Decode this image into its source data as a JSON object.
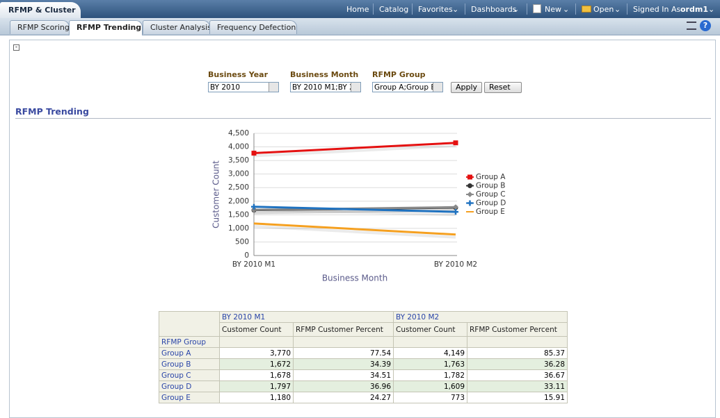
{
  "nav": {
    "app_tab": "RFMP & Cluster",
    "links": [
      "Home",
      "Catalog",
      "Favorites",
      "Dashboards",
      "New",
      "Open"
    ],
    "signed_in_label": "Signed In As",
    "user": "ordm1"
  },
  "tabs": [
    "RFMP Scoring",
    "RFMP Trending",
    "Cluster Analysis",
    "Frequency Defection"
  ],
  "prompts": [
    {
      "label": "Business Year",
      "value": "BY 2010"
    },
    {
      "label": "Business Month",
      "value": "BY 2010 M1;BY 2"
    },
    {
      "label": "RFMP Group",
      "value": "Group A;Group B"
    }
  ],
  "buttons": [
    "Apply",
    "Reset"
  ],
  "section_title": "RFMP Trending",
  "chart_data": {
    "type": "line",
    "categories": [
      "BY 2010 M1",
      "BY 2010 M2"
    ],
    "x_label": "Business Month",
    "y_label": "Customer Count",
    "ylim": [
      0,
      4500
    ],
    "yticks": [
      0,
      500,
      {
        "value": 1000,
        "label": "1,000"
      },
      {
        "value": 1500,
        "label": "1,500"
      },
      {
        "value": 2000,
        "label": "2,000"
      },
      {
        "value": 2500,
        "label": "2,500"
      },
      {
        "value": 3000,
        "label": "3,000"
      },
      {
        "value": 3500,
        "label": "3,500"
      },
      {
        "value": 4000,
        "label": "4,000"
      },
      {
        "value": 4500,
        "label": "4,500"
      }
    ],
    "grid": true,
    "legend": "right",
    "series": [
      {
        "name": "Group A",
        "color": "#e41010",
        "marker": "square",
        "values": [
          3770,
          4149
        ]
      },
      {
        "name": "Group B",
        "color": "#333333",
        "marker": "circle",
        "values": [
          1672,
          1763
        ]
      },
      {
        "name": "Group C",
        "color": "#8a8a8a",
        "marker": "diamond",
        "values": [
          1678,
          1782
        ]
      },
      {
        "name": "Group D",
        "color": "#1f72c0",
        "marker": "plus",
        "values": [
          1797,
          1609
        ]
      },
      {
        "name": "Group E",
        "color": "#f5a020",
        "marker": "none",
        "values": [
          1180,
          773
        ]
      }
    ]
  },
  "table": {
    "column_groups": [
      "BY 2010 M1",
      "BY 2010 M2"
    ],
    "measures": [
      "Customer Count",
      "RFMP Customer Percent",
      "Customer Count",
      "RFMP Customer Percent"
    ],
    "row_header": "RFMP Group",
    "rows": [
      [
        "Group A",
        "3,770",
        "77.54",
        "4,149",
        "85.37"
      ],
      [
        "Group B",
        "1,672",
        "34.39",
        "1,763",
        "36.28"
      ],
      [
        "Group C",
        "1,678",
        "34.51",
        "1,782",
        "36.67"
      ],
      [
        "Group D",
        "1,797",
        "36.96",
        "1,609",
        "33.11"
      ],
      [
        "Group E",
        "1,180",
        "24.27",
        "773",
        "15.91"
      ]
    ]
  }
}
